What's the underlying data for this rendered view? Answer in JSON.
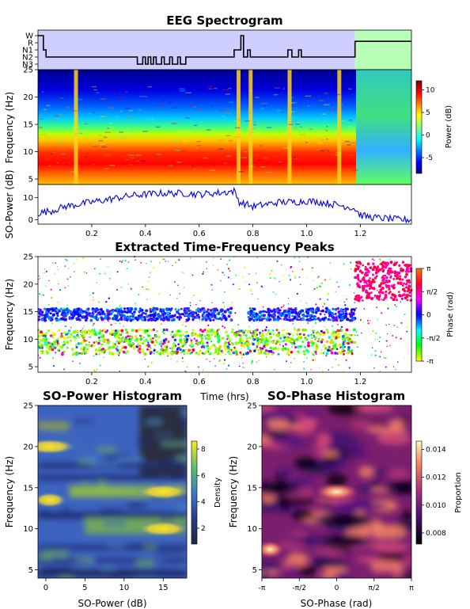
{
  "figure": {
    "title_main": "EEG Spectrogram",
    "title_peaks": "Extracted Time-Frequency Peaks",
    "title_power_hist": "SO-Power Histogram",
    "title_phase_hist": "SO-Phase Histogram"
  },
  "colors": {
    "hypno_bg_sleep": "#cfcfff",
    "hypno_bg_wake": "#b8ffb8",
    "trace": "#0000dd"
  },
  "chart_data": [
    {
      "type": "line",
      "panel": "hypnogram",
      "ylabels": [
        "W",
        "R",
        "N1",
        "N2",
        "N3"
      ],
      "x": [
        0.0,
        0.02,
        0.02,
        0.03,
        0.03,
        0.37,
        0.37,
        0.39,
        0.39,
        0.4,
        0.4,
        0.41,
        0.41,
        0.42,
        0.42,
        0.43,
        0.43,
        0.44,
        0.44,
        0.46,
        0.46,
        0.47,
        0.47,
        0.49,
        0.49,
        0.5,
        0.5,
        0.52,
        0.52,
        0.53,
        0.53,
        0.55,
        0.55,
        0.73,
        0.73,
        0.755,
        0.755,
        0.765,
        0.765,
        0.78,
        0.78,
        0.79,
        0.79,
        0.93,
        0.93,
        0.945,
        0.945,
        0.97,
        0.97,
        0.98,
        0.98,
        1.18,
        1.18,
        1.39
      ],
      "stage": [
        0,
        0,
        2,
        2,
        3,
        3,
        4,
        4,
        3,
        3,
        4,
        4,
        3,
        3,
        4,
        4,
        3,
        3,
        4,
        4,
        3,
        3,
        4,
        4,
        3,
        3,
        4,
        4,
        3,
        3,
        4,
        4,
        3,
        3,
        2,
        2,
        0,
        0,
        3,
        3,
        2,
        2,
        3,
        3,
        2,
        2,
        3,
        3,
        2,
        2,
        3,
        3,
        0.8,
        0.8
      ],
      "wake_from": 1.18,
      "xlim": [
        0,
        1.39
      ]
    },
    {
      "type": "heatmap",
      "panel": "spectrogram",
      "ylabel": "Frequency (Hz)",
      "ylim": [
        4,
        25
      ],
      "yticks": [
        5,
        10,
        15,
        20,
        25
      ],
      "xlim": [
        0,
        1.39
      ],
      "colorbar_label": "Power (dB)",
      "colorbar_ticks": [
        -5,
        0,
        5,
        10
      ],
      "bright_artifacts_hrs": [
        0.14,
        0.745,
        0.79,
        0.935,
        1.12
      ]
    },
    {
      "type": "line",
      "panel": "so_power",
      "ylabel": "SO-Power (dB)",
      "xlabel": "Time (hrs)",
      "xlim": [
        0,
        1.39
      ],
      "ylim": [
        -2,
        16
      ],
      "yticks": [
        0,
        10
      ],
      "xticks": [
        0.2,
        0.4,
        0.6,
        0.8,
        1.0,
        1.2
      ],
      "x": [
        0.0,
        0.05,
        0.1,
        0.15,
        0.2,
        0.25,
        0.3,
        0.35,
        0.4,
        0.45,
        0.5,
        0.55,
        0.6,
        0.65,
        0.7,
        0.73,
        0.75,
        0.8,
        0.85,
        0.9,
        0.95,
        1.0,
        1.05,
        1.1,
        1.15,
        1.18,
        1.2,
        1.25,
        1.3,
        1.35,
        1.39
      ],
      "y": [
        3,
        4,
        6,
        7,
        8,
        9,
        10,
        11,
        11.5,
        12,
        12,
        12,
        11.5,
        12,
        12.5,
        13,
        8,
        6,
        7,
        8,
        8,
        8.5,
        8,
        7,
        6,
        5,
        2,
        1,
        0.5,
        0,
        0
      ]
    },
    {
      "type": "scatter",
      "panel": "peaks",
      "ylabel": "Frequency (Hz)",
      "xlabel": "Time (hrs)",
      "xlim": [
        0,
        1.39
      ],
      "ylim": [
        4,
        25
      ],
      "yticks": [
        5,
        10,
        15,
        20,
        25
      ],
      "xticks": [
        0.2,
        0.4,
        0.6,
        0.8,
        1.0,
        1.2
      ],
      "colorbar_label": "Phase (rad)",
      "colorbar_ticks": [
        "-π",
        "-π/2",
        "0",
        "π/2",
        "π"
      ]
    },
    {
      "type": "heatmap",
      "panel": "so_power_histogram",
      "xlabel": "SO-Power (dB)",
      "ylabel": "Frequency (Hz)",
      "xlim": [
        -1,
        18
      ],
      "ylim": [
        4,
        25
      ],
      "xticks": [
        0,
        5,
        10,
        15
      ],
      "yticks": [
        5,
        10,
        15,
        20,
        25
      ],
      "colorbar_label": "Density",
      "colorbar_ticks": [
        2,
        4,
        6,
        8
      ],
      "hotspots": [
        {
          "x": 0.5,
          "y": 20,
          "level": 8
        },
        {
          "x": 15,
          "y": 14.5,
          "level": 8
        },
        {
          "x": 15,
          "y": 10,
          "level": 8
        },
        {
          "x": 0.5,
          "y": 13.5,
          "level": 6
        }
      ]
    },
    {
      "type": "heatmap",
      "panel": "so_phase_histogram",
      "xlabel": "SO-Phase (rad)",
      "ylabel": "Frequency (Hz)",
      "ylim": [
        4,
        25
      ],
      "xticks": [
        "-π",
        "-π/2",
        "0",
        "π/2",
        "π"
      ],
      "yticks": [
        5,
        10,
        15,
        20,
        25
      ],
      "colorbar_label": "Proportion",
      "colorbar_ticks": [
        0.008,
        0.01,
        0.012,
        0.014
      ],
      "hotspots": [
        {
          "x": 0.0,
          "y": 14.5,
          "level": 0.0145
        },
        {
          "x": -2.8,
          "y": 7.5,
          "level": 0.013
        }
      ]
    }
  ]
}
